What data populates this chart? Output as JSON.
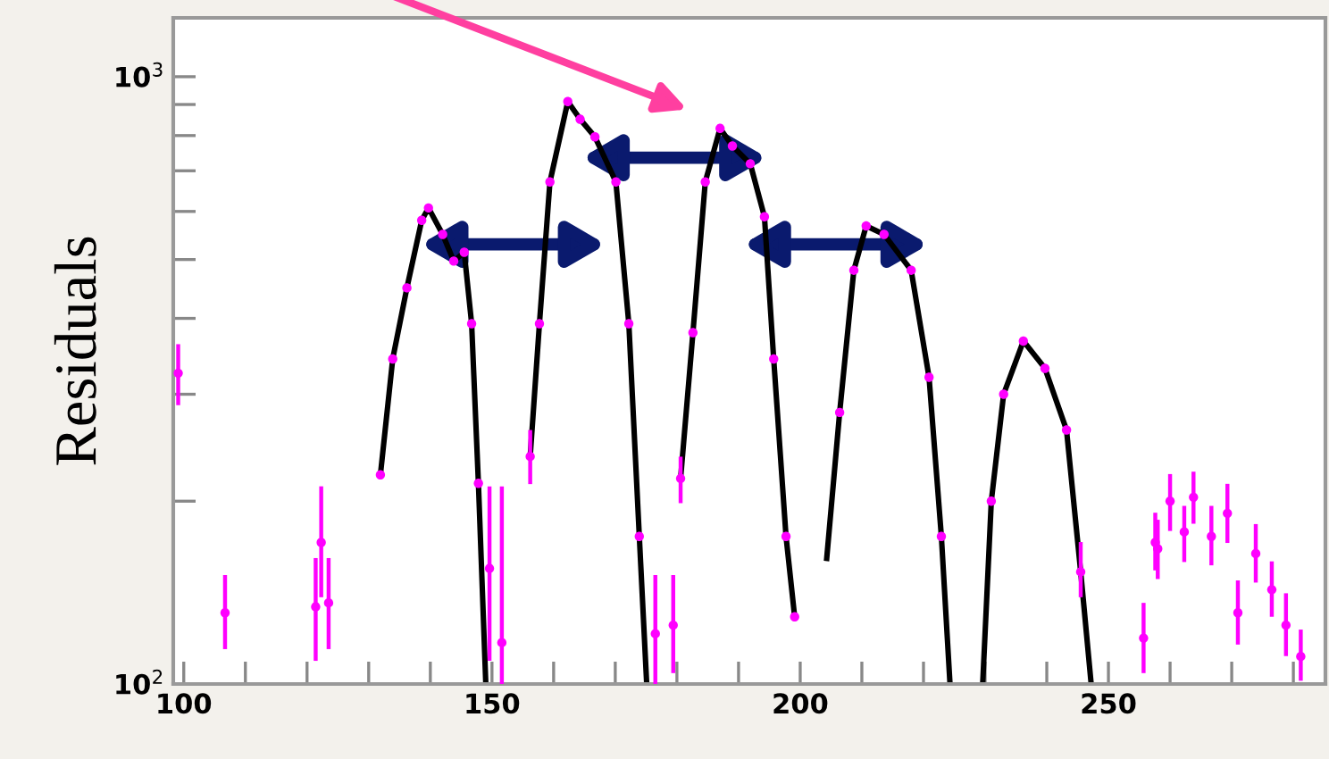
{
  "chart_data": {
    "type": "line",
    "ylabel": "Residuals",
    "log": "y",
    "xlim": [
      98.3,
      285.2
    ],
    "ylim": [
      100,
      1250
    ],
    "xticks": [
      100,
      {
        "value": 110,
        "label": null
      },
      {
        "value": 120,
        "label": null
      },
      {
        "value": 130,
        "label": null
      },
      {
        "value": 140,
        "label": null
      },
      150,
      {
        "value": 160,
        "label": null
      },
      {
        "value": 170,
        "label": null
      },
      {
        "value": 180,
        "label": null
      },
      {
        "value": 190,
        "label": null
      },
      200,
      {
        "value": 210,
        "label": null
      },
      {
        "value": 220,
        "label": null
      },
      {
        "value": 230,
        "label": null
      },
      {
        "value": 240,
        "label": null
      },
      250,
      {
        "value": 260,
        "label": null
      },
      {
        "value": 270,
        "label": null
      },
      {
        "value": 280,
        "label": null
      }
    ],
    "yticks": [
      {
        "value": 100,
        "label": "10$^{2}$"
      },
      {
        "value": 200,
        "label": null
      },
      {
        "value": 300,
        "label": null
      },
      {
        "value": 400,
        "label": null
      },
      {
        "value": 500,
        "label": null
      },
      {
        "value": 600,
        "label": null
      },
      {
        "value": 700,
        "label": null
      },
      {
        "value": 800,
        "label": null
      },
      {
        "value": 900,
        "label": null
      },
      {
        "value": 1000,
        "label": "10$^{3}$"
      }
    ],
    "grid": false,
    "series": [
      {
        "marker": "none",
        "color": "#000000",
        "x": [
          131.9,
          133.9,
          136.2,
          138.6,
          139.7,
          142.0,
          143.8,
          145.5,
          146.7,
          147.8,
          149.0
        ],
        "values": [
          221,
          343,
          449,
          580,
          608,
          550,
          497,
          514,
          392,
          214,
          100
        ]
      },
      {
        "marker": "none",
        "color": "#000000",
        "x": [
          156.2,
          157.7,
          159.4,
          162.3,
          164.3,
          166.7,
          170.1,
          172.2,
          173.9,
          175.1
        ],
        "values": [
          237,
          392,
          671,
          910,
          851,
          796,
          671,
          392,
          175,
          100
        ]
      },
      {
        "marker": "none",
        "color": "#000000",
        "x": [
          180.6,
          182.6,
          184.6,
          187.0,
          189.0,
          191.9,
          194.2,
          195.7,
          197.7,
          199.1
        ],
        "values": [
          218,
          379,
          671,
          822,
          769,
          719,
          588,
          343,
          175,
          129
        ]
      },
      {
        "marker": "none",
        "color": "#000000",
        "x": [
          204.3,
          206.4,
          208.7,
          210.7,
          213.6,
          218.0,
          220.9,
          222.9,
          224.3
        ],
        "values": [
          161,
          280,
          480,
          568,
          550,
          480,
          320,
          175,
          100
        ]
      },
      {
        "marker": "none",
        "color": "#000000",
        "x": [
          229.6,
          231.0,
          233.0,
          236.2,
          239.7,
          243.2,
          245.5,
          247.2
        ],
        "values": [
          100,
          200,
          300,
          367,
          331,
          262,
          153,
          100
        ]
      },
      {
        "type": "scatter",
        "marker": "circle",
        "color": "#ff00ff",
        "x": [
          99.1,
          106.7,
          121.4,
          122.3,
          123.5,
          131.9,
          133.9,
          136.2,
          138.6,
          139.7,
          142.0,
          143.8,
          145.5,
          146.7,
          147.8,
          149.6,
          151.6,
          156.2,
          157.7,
          159.4,
          162.3,
          164.3,
          166.7,
          170.1,
          172.2,
          173.9,
          176.5,
          179.4,
          180.6,
          182.6,
          184.6,
          187.0,
          189.0,
          191.9,
          194.2,
          195.7,
          197.7,
          199.1,
          206.4,
          208.7,
          210.7,
          213.6,
          218.0,
          220.9,
          222.9,
          231.0,
          233.0,
          236.2,
          239.7,
          243.2,
          245.5,
          255.7,
          257.6,
          258.0,
          260.0,
          262.3,
          263.8,
          266.7,
          269.3,
          271.0,
          273.9,
          276.5,
          278.8,
          281.2
        ],
        "values": [
          325,
          131,
          134,
          171,
          136,
          221,
          343,
          449,
          580,
          608,
          550,
          497,
          514,
          392,
          214,
          155,
          117,
          237,
          392,
          671,
          910,
          851,
          796,
          671,
          392,
          175,
          121,
          125,
          218,
          379,
          671,
          822,
          769,
          719,
          588,
          343,
          175,
          129,
          280,
          480,
          568,
          550,
          480,
          320,
          175,
          200,
          300,
          367,
          331,
          262,
          153,
          119,
          171,
          167,
          200,
          178,
          203,
          175,
          191,
          131,
          164,
          143,
          125,
          111
        ],
        "errors": [
          [
            290,
            360
          ],
          [
            115,
            150
          ],
          [
            110,
            160
          ],
          [
            140,
            210
          ],
          [
            115,
            160
          ],
          null,
          null,
          null,
          null,
          null,
          null,
          null,
          null,
          null,
          null,
          [
            110,
            210
          ],
          [
            100,
            210
          ],
          [
            215,
            260
          ],
          null,
          null,
          null,
          null,
          null,
          null,
          null,
          null,
          [
            100,
            150
          ],
          [
            105,
            150
          ],
          [
            200,
            235
          ],
          null,
          null,
          null,
          null,
          null,
          null,
          null,
          null,
          null,
          null,
          null,
          null,
          null,
          null,
          null,
          null,
          null,
          null,
          null,
          null,
          null,
          [
            140,
            170
          ],
          [
            105,
            135
          ],
          [
            155,
            190
          ],
          [
            150,
            185
          ],
          [
            180,
            220
          ],
          [
            160,
            195
          ],
          [
            185,
            222
          ],
          [
            158,
            195
          ],
          [
            172,
            212
          ],
          [
            117,
            147
          ],
          [
            148,
            182
          ],
          [
            130,
            158
          ],
          [
            112,
            140
          ],
          [
            102,
            122
          ]
        ]
      }
    ]
  }
}
